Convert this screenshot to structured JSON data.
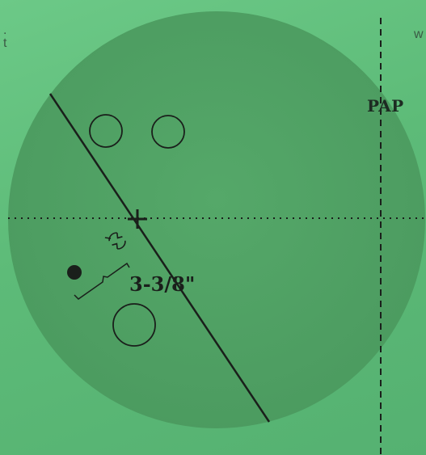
{
  "labels": {
    "top_left_fragment": ".\nt",
    "top_right_fragment": "w",
    "pap": "PAP",
    "span_measurement": "3-3/8\""
  },
  "colors": {
    "paper": "#5fc07a",
    "ball": "#4f9e62",
    "ink": "#1a1f1b"
  },
  "icons": {
    "pin_marker": "pin-swirl-icon",
    "mass_marker": "solid-dot-icon"
  }
}
